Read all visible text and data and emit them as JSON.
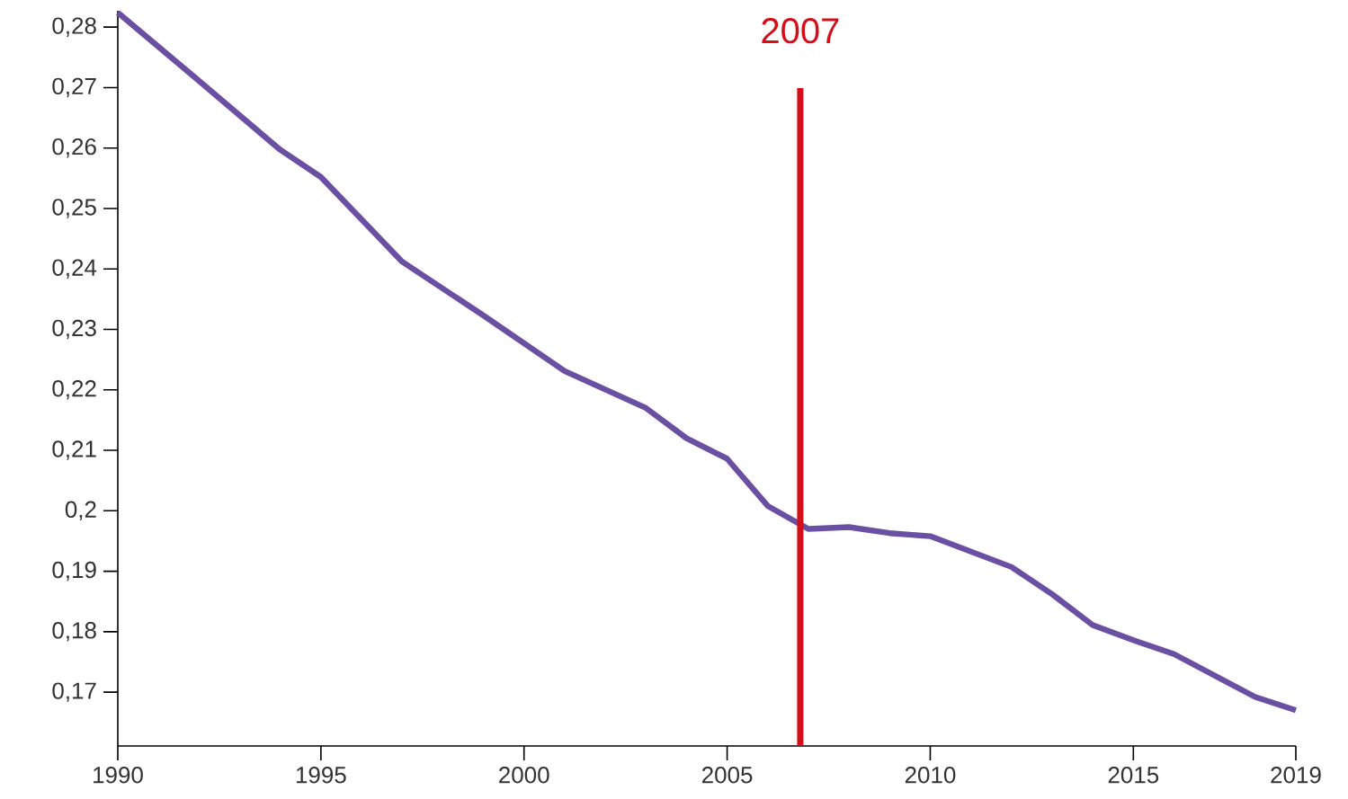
{
  "chart_data": {
    "type": "line",
    "x": [
      1990,
      1992,
      1994,
      1995,
      1997,
      1999,
      2001,
      2003,
      2004,
      2005,
      2006,
      2007,
      2008,
      2009,
      2010,
      2012,
      2013,
      2014,
      2015,
      2016,
      2018,
      2019
    ],
    "series": [
      {
        "color": "#6a4fa3",
        "values": [
          0.2824,
          0.2711,
          0.2597,
          0.2552,
          0.2412,
          0.2323,
          0.2231,
          0.217,
          0.212,
          0.2086,
          0.2008,
          0.197,
          0.1973,
          0.1963,
          0.1958,
          0.1907,
          0.1862,
          0.1811,
          0.1786,
          0.1763,
          0.1692,
          0.167
        ]
      }
    ],
    "xlim": [
      1990,
      2019
    ],
    "xticks": [
      1990,
      1995,
      2000,
      2005,
      2010,
      2015,
      2019
    ],
    "ylim": [
      0.1611,
      0.2827
    ],
    "yticks": [
      {
        "value": 0.17,
        "label": "0,17"
      },
      {
        "value": 0.18,
        "label": "0,18"
      },
      {
        "value": 0.19,
        "label": "0,19"
      },
      {
        "value": 0.2,
        "label": "0,2"
      },
      {
        "value": 0.21,
        "label": "0,21"
      },
      {
        "value": 0.22,
        "label": "0,22"
      },
      {
        "value": 0.23,
        "label": "0,23"
      },
      {
        "value": 0.24,
        "label": "0,24"
      },
      {
        "value": 0.25,
        "label": "0,25"
      },
      {
        "value": 0.26,
        "label": "0,26"
      },
      {
        "value": 0.27,
        "label": "0,27"
      },
      {
        "value": 0.28,
        "label": "0,28"
      }
    ],
    "ref_lines": [
      {
        "axis": "x",
        "value": 2006.8,
        "label": "2007",
        "color": "#d40f1a"
      }
    ],
    "grid": false,
    "marker": "none",
    "line_style": "solid"
  }
}
